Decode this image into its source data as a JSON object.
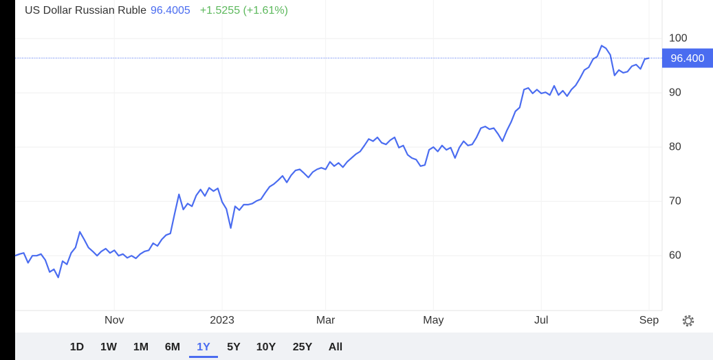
{
  "chart_data": {
    "type": "line",
    "header": {
      "name": "US Dollar Russian Ruble",
      "price": "96.4005",
      "change": "+1.5255 (+1.61%)"
    },
    "price_marker": {
      "value": 96.4005,
      "label": "96.400"
    },
    "series": [
      {
        "name": "USD/RUB",
        "color": "#4a6cf0",
        "values": [
          60.0,
          60.3,
          60.5,
          58.7,
          60.0,
          60.0,
          60.3,
          59.2,
          57.0,
          57.5,
          56.0,
          59.0,
          58.4,
          60.5,
          61.5,
          64.4,
          63.0,
          61.5,
          60.8,
          60.0,
          60.8,
          61.3,
          60.5,
          61.0,
          60.0,
          60.3,
          59.6,
          60.0,
          59.5,
          60.3,
          60.8,
          61.0,
          62.3,
          61.8,
          63.0,
          63.8,
          64.1,
          67.8,
          71.3,
          68.5,
          69.6,
          69.1,
          71.1,
          72.2,
          71.0,
          72.5,
          71.9,
          72.4,
          69.9,
          68.6,
          65.1,
          69.1,
          68.4,
          69.4,
          69.4,
          69.6,
          70.1,
          70.4,
          71.6,
          72.7,
          73.2,
          73.9,
          74.7,
          73.5,
          74.8,
          75.7,
          75.9,
          75.2,
          74.4,
          75.4,
          75.9,
          76.2,
          75.9,
          77.3,
          76.5,
          77.1,
          76.3,
          77.3,
          78.0,
          78.7,
          79.2,
          80.3,
          81.5,
          81.1,
          81.8,
          80.8,
          80.5,
          81.3,
          81.8,
          79.9,
          80.3,
          78.6,
          78.0,
          77.7,
          76.5,
          76.7,
          79.5,
          80.0,
          79.2,
          80.3,
          79.5,
          79.9,
          78.0,
          79.9,
          81.1,
          80.3,
          80.5,
          81.8,
          83.5,
          83.8,
          83.3,
          83.5,
          82.4,
          81.1,
          83.0,
          84.6,
          86.6,
          87.3,
          90.6,
          90.9,
          89.9,
          90.6,
          89.9,
          90.1,
          89.6,
          91.3,
          89.6,
          90.4,
          89.4,
          90.6,
          91.4,
          92.7,
          94.2,
          94.7,
          96.2,
          96.7,
          98.7,
          98.2,
          97.0,
          93.2,
          94.2,
          93.7,
          93.9,
          94.9,
          95.2,
          94.4,
          96.2,
          96.4005
        ]
      }
    ],
    "xlim": [
      0,
      147
    ],
    "xticks": [
      {
        "value": 23,
        "label": "Nov"
      },
      {
        "value": 48,
        "label": "2023"
      },
      {
        "value": 72,
        "label": "Mar"
      },
      {
        "value": 97,
        "label": "May"
      },
      {
        "value": 122,
        "label": "Jul"
      },
      {
        "value": 147,
        "label": "Sep"
      }
    ],
    "ylim": [
      49.9,
      107.1
    ],
    "yticks": [
      60,
      70,
      80,
      90,
      100
    ],
    "grid": true,
    "ranges": [
      "1D",
      "1W",
      "1M",
      "6M",
      "1Y",
      "5Y",
      "10Y",
      "25Y",
      "All"
    ],
    "selected_range": "1Y"
  }
}
